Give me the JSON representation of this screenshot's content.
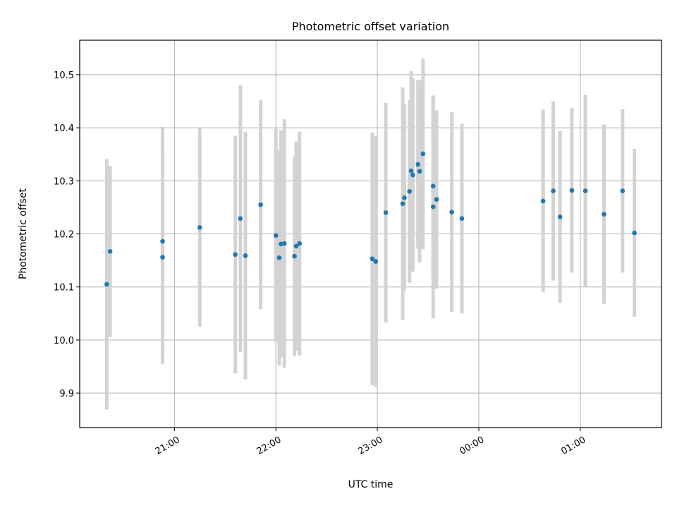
{
  "chart_data": {
    "type": "scatter",
    "title": "Photometric offset variation",
    "xlabel": "UTC time",
    "ylabel": "Photometric offset",
    "x_ticks": [
      {
        "time": "21:00",
        "label": "21:00"
      },
      {
        "time": "22:00",
        "label": "22:00"
      },
      {
        "time": "23:00",
        "label": "23:00"
      },
      {
        "time": "24:00",
        "label": "00:00"
      },
      {
        "time": "25:00",
        "label": "01:00"
      }
    ],
    "y_ticks": [
      "9.9",
      "10.0",
      "10.1",
      "10.2",
      "10.3",
      "10.4",
      "10.5"
    ],
    "xlim": [
      "20:04",
      "25:48"
    ],
    "ylim": [
      9.835,
      10.565
    ],
    "grid": true,
    "colors": {
      "point": "#1f77b4",
      "errorbar": "#d3d3d3",
      "grid": "#b0b0b0"
    },
    "series": [
      {
        "points": [
          {
            "x": "20:20",
            "y": 10.105,
            "err": 0.236
          },
          {
            "x": "20:22",
            "y": 10.167,
            "err": 0.161
          },
          {
            "x": "20:53",
            "y": 10.156,
            "err": 0.201
          },
          {
            "x": "20:53",
            "y": 10.186,
            "err": 0.216
          },
          {
            "x": "21:15",
            "y": 10.212,
            "err": 0.187
          },
          {
            "x": "21:36",
            "y": 10.161,
            "err": 0.224
          },
          {
            "x": "21:39",
            "y": 10.229,
            "err": 0.251
          },
          {
            "x": "21:42",
            "y": 10.159,
            "err": 0.233
          },
          {
            "x": "21:51",
            "y": 10.255,
            "err": 0.197
          },
          {
            "x": "22:00",
            "y": 10.197,
            "err": 0.201
          },
          {
            "x": "22:02",
            "y": 10.155,
            "err": 0.203
          },
          {
            "x": "22:03",
            "y": 10.181,
            "err": 0.214
          },
          {
            "x": "22:05",
            "y": 10.182,
            "err": 0.234
          },
          {
            "x": "22:11",
            "y": 10.158,
            "err": 0.188
          },
          {
            "x": "22:12",
            "y": 10.177,
            "err": 0.197
          },
          {
            "x": "22:14",
            "y": 10.182,
            "err": 0.211
          },
          {
            "x": "22:57",
            "y": 10.153,
            "err": 0.238
          },
          {
            "x": "22:59",
            "y": 10.148,
            "err": 0.236
          },
          {
            "x": "23:05",
            "y": 10.24,
            "err": 0.207
          },
          {
            "x": "23:15",
            "y": 10.257,
            "err": 0.219
          },
          {
            "x": "23:16",
            "y": 10.268,
            "err": 0.176
          },
          {
            "x": "23:19",
            "y": 10.28,
            "err": 0.172
          },
          {
            "x": "23:20",
            "y": 10.319,
            "err": 0.188
          },
          {
            "x": "23:21",
            "y": 10.311,
            "err": 0.182
          },
          {
            "x": "23:24",
            "y": 10.331,
            "err": 0.159
          },
          {
            "x": "23:25",
            "y": 10.318,
            "err": 0.172
          },
          {
            "x": "23:27",
            "y": 10.351,
            "err": 0.18
          },
          {
            "x": "23:33",
            "y": 10.29,
            "err": 0.17
          },
          {
            "x": "23:33",
            "y": 10.251,
            "err": 0.21
          },
          {
            "x": "23:35",
            "y": 10.265,
            "err": 0.168
          },
          {
            "x": "23:44",
            "y": 10.241,
            "err": 0.188
          },
          {
            "x": "23:50",
            "y": 10.229,
            "err": 0.179
          },
          {
            "x": "24:38",
            "y": 10.262,
            "err": 0.172
          },
          {
            "x": "24:44",
            "y": 10.281,
            "err": 0.169
          },
          {
            "x": "24:48",
            "y": 10.232,
            "err": 0.162
          },
          {
            "x": "24:55",
            "y": 10.282,
            "err": 0.155
          },
          {
            "x": "25:03",
            "y": 10.281,
            "err": 0.181
          },
          {
            "x": "25:14",
            "y": 10.237,
            "err": 0.169
          },
          {
            "x": "25:25",
            "y": 10.281,
            "err": 0.154
          },
          {
            "x": "25:32",
            "y": 10.202,
            "err": 0.158
          }
        ]
      }
    ]
  }
}
